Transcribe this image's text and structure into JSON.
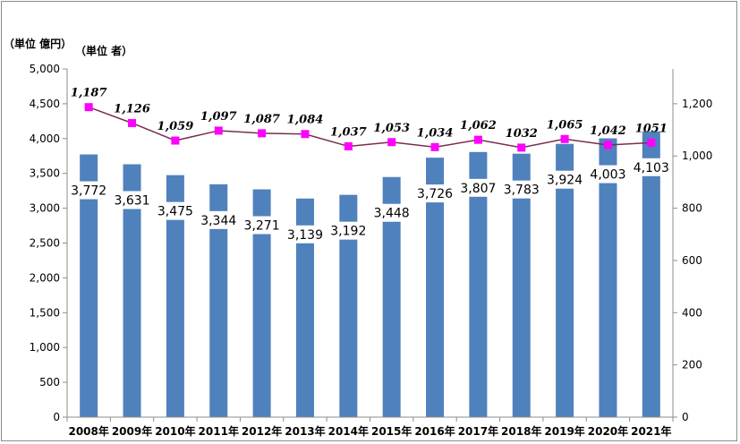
{
  "chart_data": {
    "type": "bar+line",
    "categories": [
      "2008年",
      "2009年",
      "2010年",
      "2011年",
      "2012年",
      "2013年",
      "2014年",
      "2015年",
      "2016年",
      "2017年",
      "2018年",
      "2019年",
      "2020年",
      "2021年"
    ],
    "series": [
      {
        "type": "bar",
        "axis": "left",
        "values": [
          3772,
          3631,
          3475,
          3344,
          3271,
          3139,
          3192,
          3448,
          3726,
          3807,
          3783,
          3924,
          4003,
          4103
        ],
        "labels": [
          "3,772",
          "3,631",
          "3,475",
          "3,344",
          "3,271",
          "3,139",
          "3,192",
          "3,448",
          "3,726",
          "3,807",
          "3,783",
          "3,924",
          "4,003",
          "4,103"
        ],
        "color": "#4f81bd"
      },
      {
        "type": "line",
        "axis": "right",
        "values": [
          1187,
          1126,
          1059,
          1097,
          1087,
          1084,
          1037,
          1053,
          1034,
          1062,
          1032,
          1065,
          1042,
          1051
        ],
        "labels": [
          "1,187",
          "1,126",
          "1,059",
          "1,097",
          "1,087",
          "1,084",
          "1,037",
          "1,053",
          "1,034",
          "1,062",
          "1032",
          "1,065",
          "1,042",
          "1051"
        ],
        "line_color": "#7b2c4e",
        "marker_color": "#ff00ff"
      }
    ],
    "left_axis": {
      "unit_label": "（単位  億円）",
      "ylim": [
        0,
        5000
      ],
      "ticks": [
        "0",
        "500",
        "1,000",
        "1,500",
        "2,000",
        "2,500",
        "3,000",
        "3,500",
        "4,000",
        "4,500",
        "5,000"
      ]
    },
    "right_axis": {
      "unit_label": "（単位  者）",
      "ylim": [
        0,
        1333.33
      ],
      "ticks": [
        "0",
        "200",
        "400",
        "600",
        "800",
        "1,000",
        "1,200"
      ]
    },
    "grid": false,
    "legend": "none"
  }
}
